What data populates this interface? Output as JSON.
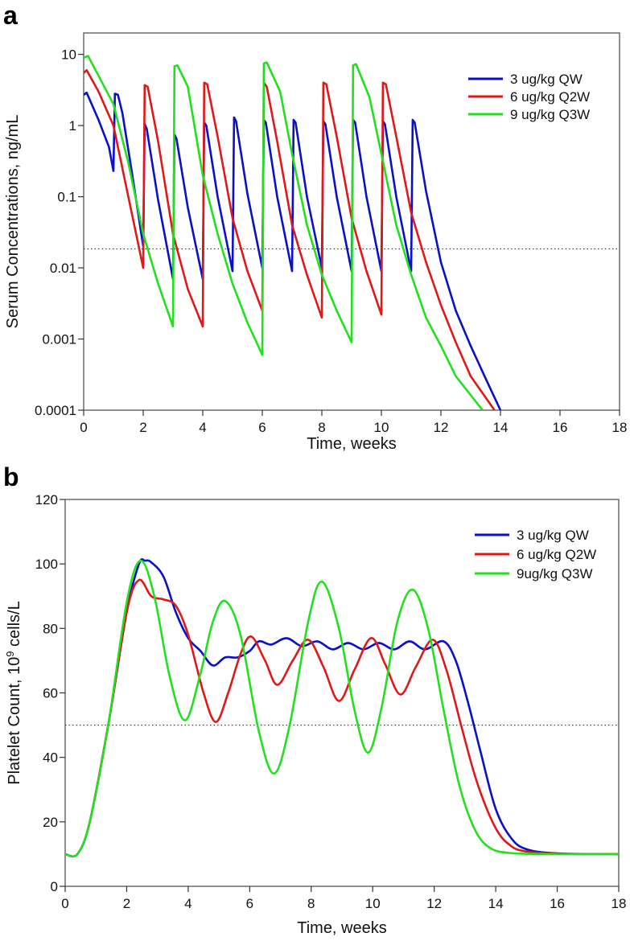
{
  "chart_data": [
    {
      "panel_label": "a",
      "type": "line",
      "xlabel": "Time, weeks",
      "ylabel": "Serum Concentrations, ng/mL",
      "xlim": [
        0,
        18
      ],
      "ylim": [
        0.0001,
        20
      ],
      "yscale": "log",
      "xticks": [
        "0",
        "2",
        "4",
        "6",
        "8",
        "10",
        "12",
        "14",
        "16",
        "18"
      ],
      "yticks": [
        {
          "v": 10,
          "label": "10"
        },
        {
          "v": 1,
          "label": "1"
        },
        {
          "v": 0.1,
          "label": "0.1"
        },
        {
          "v": 0.01,
          "label": "0.01"
        },
        {
          "v": 0.001,
          "label": "0.001"
        },
        {
          "v": 0.0001,
          "label": "0.0001"
        }
      ],
      "reference_line": 0.0185,
      "legend_position": "top-right",
      "series": [
        {
          "name": "3 ug/kg QW",
          "color": "#0a10c8",
          "points": [
            [
              0,
              2.7
            ],
            [
              0.1,
              2.9
            ],
            [
              0.5,
              1.2
            ],
            [
              0.85,
              0.5
            ],
            [
              1.0,
              0.23
            ],
            [
              1.05,
              2.8
            ],
            [
              1.15,
              2.7
            ],
            [
              1.3,
              1.5
            ],
            [
              1.6,
              0.25
            ],
            [
              2.0,
              0.02
            ],
            [
              2.05,
              1.05
            ],
            [
              2.12,
              0.9
            ],
            [
              2.5,
              0.09
            ],
            [
              3.0,
              0.007
            ],
            [
              3.05,
              0.75
            ],
            [
              3.12,
              0.65
            ],
            [
              3.5,
              0.07
            ],
            [
              4.0,
              0.007
            ],
            [
              4.05,
              1.1
            ],
            [
              4.12,
              1.0
            ],
            [
              4.5,
              0.1
            ],
            [
              5.0,
              0.009
            ],
            [
              5.05,
              1.3
            ],
            [
              5.12,
              1.15
            ],
            [
              5.5,
              0.11
            ],
            [
              6.0,
              0.01
            ],
            [
              6.05,
              1.2
            ],
            [
              6.12,
              1.1
            ],
            [
              6.5,
              0.1
            ],
            [
              7.0,
              0.009
            ],
            [
              7.05,
              1.2
            ],
            [
              7.12,
              1.1
            ],
            [
              7.5,
              0.1
            ],
            [
              8.0,
              0.01
            ],
            [
              8.05,
              1.15
            ],
            [
              8.12,
              1.05
            ],
            [
              8.5,
              0.1
            ],
            [
              9.0,
              0.009
            ],
            [
              9.05,
              1.2
            ],
            [
              9.12,
              1.1
            ],
            [
              9.5,
              0.1
            ],
            [
              10.0,
              0.009
            ],
            [
              10.05,
              1.15
            ],
            [
              10.12,
              1.05
            ],
            [
              10.5,
              0.1
            ],
            [
              11.0,
              0.009
            ],
            [
              11.05,
              1.2
            ],
            [
              11.12,
              1.1
            ],
            [
              11.5,
              0.12
            ],
            [
              12,
              0.012
            ],
            [
              12.5,
              0.0025
            ],
            [
              13,
              0.0008
            ],
            [
              13.5,
              0.00028
            ],
            [
              14,
              0.0001
            ]
          ]
        },
        {
          "name": "6 ug/kg Q2W",
          "color": "#e01818",
          "points": [
            [
              0,
              5.5
            ],
            [
              0.1,
              6
            ],
            [
              0.5,
              3
            ],
            [
              1,
              1
            ],
            [
              1.5,
              0.1
            ],
            [
              2,
              0.01
            ],
            [
              2.05,
              3.7
            ],
            [
              2.15,
              3.5
            ],
            [
              2.5,
              0.6
            ],
            [
              3,
              0.03
            ],
            [
              3.5,
              0.005
            ],
            [
              4,
              0.0015
            ],
            [
              4.05,
              4
            ],
            [
              4.15,
              3.8
            ],
            [
              4.5,
              0.7
            ],
            [
              5,
              0.05
            ],
            [
              5.5,
              0.009
            ],
            [
              6,
              0.0025
            ],
            [
              6.05,
              4
            ],
            [
              6.15,
              3.5
            ],
            [
              6.5,
              0.6
            ],
            [
              7,
              0.04
            ],
            [
              7.5,
              0.008
            ],
            [
              8,
              0.002
            ],
            [
              8.05,
              4
            ],
            [
              8.15,
              3.8
            ],
            [
              8.5,
              0.7
            ],
            [
              9,
              0.05
            ],
            [
              9.5,
              0.009
            ],
            [
              10,
              0.0022
            ],
            [
              10.05,
              4
            ],
            [
              10.15,
              3.8
            ],
            [
              10.5,
              0.7
            ],
            [
              11,
              0.06
            ],
            [
              11.5,
              0.012
            ],
            [
              12,
              0.003
            ],
            [
              12.5,
              0.0009
            ],
            [
              13,
              0.0003
            ],
            [
              13.8,
              0.0001
            ]
          ]
        },
        {
          "name": "9 ug/kg Q3W",
          "color": "#22e01e",
          "points": [
            [
              0,
              9
            ],
            [
              0.15,
              9.5
            ],
            [
              0.5,
              5
            ],
            [
              1,
              2
            ],
            [
              1.5,
              0.3
            ],
            [
              2,
              0.03
            ],
            [
              2.5,
              0.006
            ],
            [
              3,
              0.0015
            ],
            [
              3.05,
              6.8
            ],
            [
              3.15,
              7
            ],
            [
              3.5,
              3.5
            ],
            [
              4,
              0.2
            ],
            [
              4.5,
              0.03
            ],
            [
              5,
              0.006
            ],
            [
              5.5,
              0.0017
            ],
            [
              6,
              0.0006
            ],
            [
              6.05,
              7.5
            ],
            [
              6.15,
              7.7
            ],
            [
              6.6,
              3
            ],
            [
              7,
              0.4
            ],
            [
              7.5,
              0.04
            ],
            [
              8,
              0.008
            ],
            [
              8.5,
              0.0025
            ],
            [
              9,
              0.0009
            ],
            [
              9.05,
              7
            ],
            [
              9.15,
              7.3
            ],
            [
              9.6,
              2.5
            ],
            [
              10,
              0.4
            ],
            [
              10.5,
              0.04
            ],
            [
              11,
              0.008
            ],
            [
              11.5,
              0.002
            ],
            [
              12,
              0.0008
            ],
            [
              12.5,
              0.0003
            ],
            [
              13.4,
              0.0001
            ]
          ]
        }
      ]
    },
    {
      "panel_label": "b",
      "type": "line",
      "xlabel": "Time, weeks",
      "ylabel_parts": {
        "pre": "Platelet Count, 10",
        "sup": "9",
        "post": " cells/L"
      },
      "xlim": [
        0,
        18
      ],
      "ylim": [
        0,
        120
      ],
      "yscale": "linear",
      "xticks": [
        "0",
        "2",
        "4",
        "6",
        "8",
        "10",
        "12",
        "14",
        "16",
        "18"
      ],
      "yticks": [
        {
          "v": 0,
          "label": "0"
        },
        {
          "v": 20,
          "label": "20"
        },
        {
          "v": 40,
          "label": "40"
        },
        {
          "v": 60,
          "label": "60"
        },
        {
          "v": 80,
          "label": "80"
        },
        {
          "v": 100,
          "label": "100"
        },
        {
          "v": 120,
          "label": "120"
        }
      ],
      "reference_line": 50,
      "legend_position": "top-right",
      "series": [
        {
          "name": "3 ug/kg QW",
          "color": "#0a10c8",
          "points": [
            [
              0,
              10
            ],
            [
              0.4,
              10
            ],
            [
              0.8,
              20
            ],
            [
              1.4,
              50
            ],
            [
              2,
              85
            ],
            [
              2.4,
              100
            ],
            [
              2.6,
              101
            ],
            [
              2.8,
              100.5
            ],
            [
              3.2,
              96
            ],
            [
              3.6,
              85
            ],
            [
              4,
              77
            ],
            [
              4.4,
              73
            ],
            [
              4.8,
              68.5
            ],
            [
              5.2,
              71
            ],
            [
              5.6,
              71
            ],
            [
              6,
              73
            ],
            [
              6.3,
              76
            ],
            [
              6.7,
              75
            ],
            [
              7.2,
              77
            ],
            [
              7.7,
              74.5
            ],
            [
              8.2,
              76
            ],
            [
              8.7,
              73.5
            ],
            [
              9.2,
              75.5
            ],
            [
              9.7,
              73.5
            ],
            [
              10.2,
              75.5
            ],
            [
              10.7,
              73.5
            ],
            [
              11.2,
              76
            ],
            [
              11.7,
              73.5
            ],
            [
              12.3,
              76
            ],
            [
              12.7,
              70
            ],
            [
              13.1,
              57
            ],
            [
              13.5,
              42
            ],
            [
              14,
              24
            ],
            [
              14.5,
              15
            ],
            [
              15,
              11.5
            ],
            [
              16,
              10.2
            ],
            [
              18,
              10
            ]
          ]
        },
        {
          "name": "6 ug/kg Q2W",
          "color": "#e01818",
          "points": [
            [
              0,
              10
            ],
            [
              0.4,
              10
            ],
            [
              0.8,
              20
            ],
            [
              1.4,
              50
            ],
            [
              2,
              85
            ],
            [
              2.4,
              95
            ],
            [
              2.8,
              90
            ],
            [
              3.2,
              89
            ],
            [
              3.6,
              87
            ],
            [
              4,
              78
            ],
            [
              4.5,
              60
            ],
            [
              4.9,
              51
            ],
            [
              5.3,
              60
            ],
            [
              5.7,
              72
            ],
            [
              6.05,
              77.5
            ],
            [
              6.5,
              70
            ],
            [
              6.9,
              62.5
            ],
            [
              7.4,
              70
            ],
            [
              7.9,
              76.5
            ],
            [
              8.4,
              68
            ],
            [
              8.9,
              57.5
            ],
            [
              9.4,
              67
            ],
            [
              9.95,
              77
            ],
            [
              10.4,
              69
            ],
            [
              10.9,
              59.5
            ],
            [
              11.4,
              68
            ],
            [
              11.95,
              76.5
            ],
            [
              12.4,
              67
            ],
            [
              12.9,
              49
            ],
            [
              13.4,
              32
            ],
            [
              14,
              18
            ],
            [
              14.5,
              12.5
            ],
            [
              15,
              10.8
            ],
            [
              16,
              10.1
            ],
            [
              18,
              10
            ]
          ]
        },
        {
          "name": "9ug/kg Q3W",
          "color": "#22e01e",
          "points": [
            [
              0,
              10
            ],
            [
              0.4,
              10
            ],
            [
              0.8,
              20
            ],
            [
              1.4,
              50
            ],
            [
              2,
              88
            ],
            [
              2.45,
              101
            ],
            [
              2.9,
              90
            ],
            [
              3.4,
              65
            ],
            [
              3.9,
              51.5
            ],
            [
              4.4,
              66
            ],
            [
              4.8,
              82
            ],
            [
              5.2,
              88.5
            ],
            [
              5.7,
              78
            ],
            [
              6.3,
              48
            ],
            [
              6.8,
              35
            ],
            [
              7.3,
              50
            ],
            [
              7.9,
              82
            ],
            [
              8.35,
              94.5
            ],
            [
              8.9,
              80
            ],
            [
              9.4,
              55
            ],
            [
              9.85,
              41.5
            ],
            [
              10.3,
              56
            ],
            [
              10.8,
              82
            ],
            [
              11.3,
              92
            ],
            [
              11.8,
              80
            ],
            [
              12.3,
              55
            ],
            [
              12.8,
              32
            ],
            [
              13.3,
              18
            ],
            [
              13.8,
              12
            ],
            [
              14.5,
              10.3
            ],
            [
              16,
              10
            ],
            [
              18,
              10
            ]
          ]
        }
      ]
    }
  ]
}
